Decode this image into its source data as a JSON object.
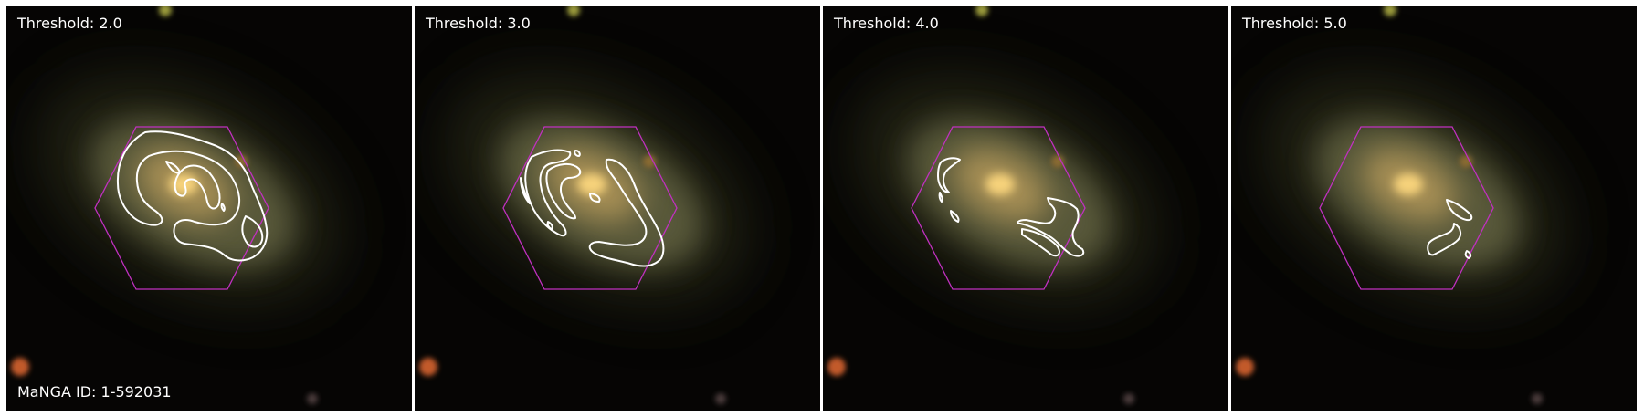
{
  "figure": {
    "manga_id_label": "MaNGA ID: 1-592031",
    "overlay_colors": {
      "contour": "#ffffff",
      "ifu_hexagon": "#c030c0"
    },
    "panels": [
      {
        "title": "Threshold: 2.0",
        "threshold": 2.0
      },
      {
        "title": "Threshold: 3.0",
        "threshold": 3.0
      },
      {
        "title": "Threshold: 4.0",
        "threshold": 4.0
      },
      {
        "title": "Threshold: 5.0",
        "threshold": 5.0
      }
    ]
  }
}
